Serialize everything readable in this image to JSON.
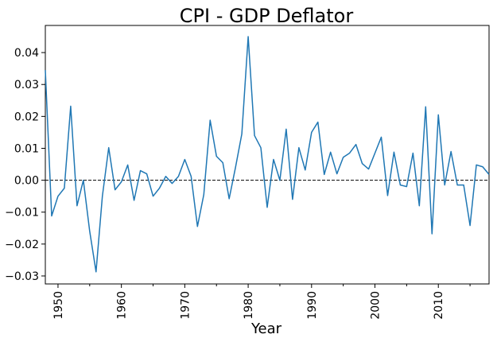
{
  "chart_data": {
    "type": "line",
    "title": "CPI - GDP Deflator",
    "xlabel": "Year",
    "ylabel": "",
    "xlim": [
      1948,
      2018
    ],
    "ylim": [
      -0.0325,
      0.0485
    ],
    "grid": false,
    "legend": "none",
    "x_ticks": [
      1950,
      1960,
      1970,
      1980,
      1990,
      2000,
      2010
    ],
    "x_tick_labels": [
      "1950",
      "1960",
      "1970",
      "1980",
      "1990",
      "2000",
      "2010"
    ],
    "y_ticks": [
      -0.03,
      -0.02,
      -0.01,
      0.0,
      0.01,
      0.02,
      0.03,
      0.04
    ],
    "y_tick_labels": [
      "−0.03",
      "−0.02",
      "−0.01",
      "0.00",
      "0.01",
      "0.02",
      "0.03",
      "0.04"
    ],
    "reference_line": {
      "y": 0.0,
      "style": "dashed",
      "color": "#000000"
    },
    "series": [
      {
        "color": "#1f77b4",
        "x": [
          1948,
          1949,
          1950,
          1951,
          1952,
          1953,
          1954,
          1955,
          1956,
          1957,
          1958,
          1959,
          1960,
          1961,
          1962,
          1963,
          1964,
          1965,
          1966,
          1967,
          1968,
          1969,
          1970,
          1971,
          1972,
          1973,
          1974,
          1975,
          1976,
          1977,
          1978,
          1979,
          1980,
          1981,
          1982,
          1983,
          1984,
          1985,
          1986,
          1987,
          1988,
          1989,
          1990,
          1991,
          1992,
          1993,
          1994,
          1995,
          1996,
          1997,
          1998,
          1999,
          2000,
          2001,
          2002,
          2003,
          2004,
          2005,
          2006,
          2007,
          2008,
          2009,
          2010,
          2011,
          2012,
          2013,
          2014,
          2015,
          2016,
          2017,
          2018
        ],
        "y": [
          0.0345,
          -0.0112,
          -0.005,
          -0.0025,
          0.0232,
          -0.008,
          0.0,
          -0.016,
          -0.0287,
          -0.005,
          0.0102,
          -0.003,
          -0.0005,
          0.0048,
          -0.0063,
          0.003,
          0.002,
          -0.005,
          -0.0025,
          0.0012,
          -0.001,
          0.0012,
          0.0065,
          0.0012,
          -0.0145,
          -0.0045,
          0.0188,
          0.0075,
          0.0055,
          -0.0058,
          0.004,
          0.0145,
          0.045,
          0.014,
          0.0102,
          -0.0085,
          0.0065,
          0.0,
          0.016,
          -0.006,
          0.0102,
          0.0032,
          0.015,
          0.0182,
          0.0018,
          0.0088,
          0.002,
          0.0072,
          0.0085,
          0.0112,
          0.0052,
          0.0035,
          0.0085,
          0.0135,
          -0.0048,
          0.0088,
          -0.0015,
          -0.002,
          0.0085,
          -0.008,
          0.023,
          -0.0168,
          0.0205,
          -0.0015,
          0.009,
          -0.0015,
          -0.0015,
          -0.0142,
          0.0048,
          0.0042,
          0.0018
        ]
      }
    ]
  }
}
